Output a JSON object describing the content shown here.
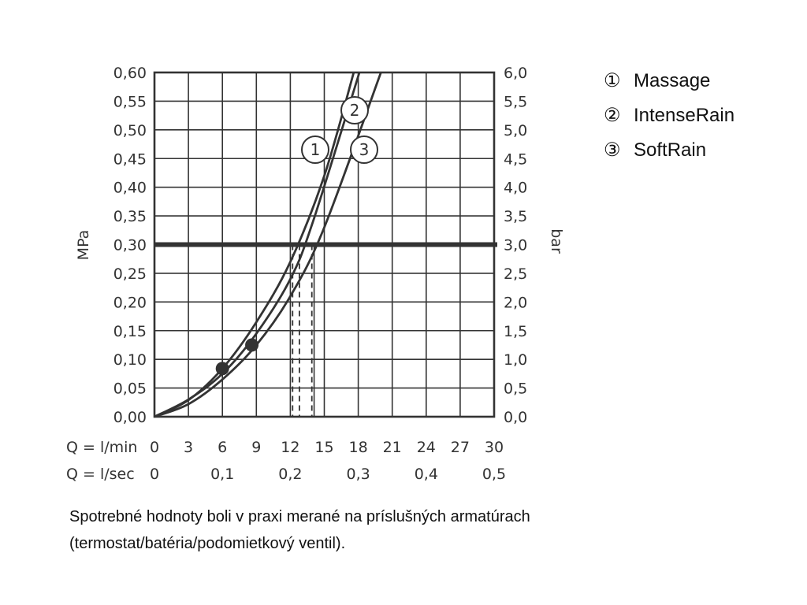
{
  "chart_data": {
    "type": "line",
    "ylabel_left": "MPa",
    "ylabel_right": "bar",
    "xlabel_lmin": "Q = l/min",
    "xlabel_lsec": "Q = l/sec",
    "xlim": [
      0,
      30
    ],
    "ylim": [
      0,
      0.6
    ],
    "grid": true,
    "left_ticks": [
      "0,00",
      "0,05",
      "0,10",
      "0,15",
      "0,20",
      "0,25",
      "0,30",
      "0,35",
      "0,40",
      "0,45",
      "0,50",
      "0,55",
      "0,60"
    ],
    "right_ticks": [
      "0,0",
      "0,5",
      "1,0",
      "1,5",
      "2,0",
      "2,5",
      "3,0",
      "3,5",
      "4,0",
      "4,5",
      "5,0",
      "5,5",
      "6,0"
    ],
    "x_ticks_lmin": [
      "0",
      "3",
      "6",
      "9",
      "12",
      "15",
      "18",
      "21",
      "24",
      "27",
      "30"
    ],
    "x_ticks_lsec": [
      "0",
      "0,1",
      "0,2",
      "0,3",
      "0,4",
      "0,5"
    ],
    "reference_pressure": 0.3,
    "series": [
      {
        "name": "1",
        "x": [
          0,
          3,
          6,
          9,
          12,
          15,
          17.6
        ],
        "y": [
          0,
          0.029,
          0.084,
          0.165,
          0.27,
          0.42,
          0.6
        ],
        "flow_at_reference": 12.2,
        "marker": [
          6,
          0.084
        ]
      },
      {
        "name": "2",
        "x": [
          0,
          3,
          6,
          9,
          12,
          14,
          18.1
        ],
        "y": [
          0,
          0.03,
          0.075,
          0.145,
          0.24,
          0.34,
          0.6
        ],
        "flow_at_reference": 12.8
      },
      {
        "name": "3",
        "x": [
          0,
          3,
          6,
          9,
          12,
          15,
          20
        ],
        "y": [
          0,
          0.022,
          0.065,
          0.125,
          0.21,
          0.33,
          0.6
        ],
        "flow_at_reference": 13.9,
        "marker": [
          8.6,
          0.125
        ]
      }
    ]
  },
  "legend": [
    {
      "number": "①",
      "label": "Massage"
    },
    {
      "number": "②",
      "label": "IntenseRain"
    },
    {
      "number": "③",
      "label": "SoftRain"
    }
  ],
  "footnote": {
    "line1": "Spotrebné hodnoty boli v praxi merané na príslušných armatúrach",
    "line2": "(termostat/batéria/podomietkový ventil)."
  }
}
